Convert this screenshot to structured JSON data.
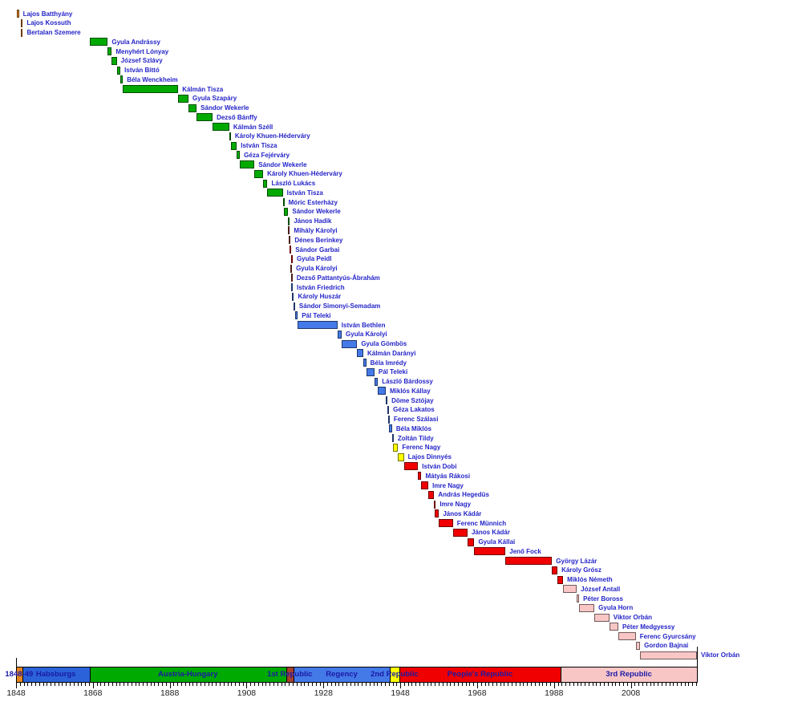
{
  "page": {
    "background": "#FFFFFF"
  },
  "text_colors": {
    "minister_label": "#2424C8",
    "period_label": "#1A1AA6",
    "axis_label": "#222222"
  },
  "chart_data": {
    "type": "timeline",
    "description_visible_text_only": true,
    "x_axis": {
      "start_year": 1848,
      "end_year": 2025.2,
      "minor_tick_interval_years": 1,
      "major_tick_interval_years": 20,
      "labeled_years": [
        1848,
        1868,
        1888,
        1908,
        1928,
        1948,
        1968,
        1988,
        2008
      ]
    },
    "era_colors": {
      "revolution": "#E8861F",
      "habsburg": "#2B62D9",
      "austria_hungary": "#00AA00",
      "first_republic": "#A8402F",
      "soviet": "#F00000",
      "regency": "#4479E8",
      "second_republic": "#FFFF00",
      "peoples_republic": "#F00000",
      "third_republic": "#F9C6C6"
    },
    "periods": [
      {
        "label": "1848-49",
        "start": 1848.0,
        "end": 1849.6,
        "era": "revolution"
      },
      {
        "label": "Habsburgs",
        "start": 1849.6,
        "end": 1867.13,
        "era": "habsburg"
      },
      {
        "label": "Austria-Hungary",
        "start": 1867.13,
        "end": 1918.3,
        "era": "austria_hungary"
      },
      {
        "label": "1st Republic",
        "start": 1918.3,
        "end": 1920.2,
        "era": "first_republic"
      },
      {
        "label": "Regency",
        "start": 1920.2,
        "end": 1945.3,
        "era": "regency"
      },
      {
        "label": "2nd Republic",
        "start": 1945.3,
        "end": 1947.7,
        "era": "second_republic"
      },
      {
        "label": "People's Republic",
        "start": 1947.7,
        "end": 1989.8,
        "era": "peoples_republic"
      },
      {
        "label": "3rd Republic",
        "start": 1989.8,
        "end": 2025.2,
        "era": "third_republic"
      }
    ],
    "ministers": [
      {
        "name": "Lajos Batthyány",
        "start": 1848.21,
        "end": 1848.75,
        "era": "revolution"
      },
      {
        "name": "Lajos Kossuth",
        "start": 1849.33,
        "end": 1849.61,
        "era": "revolution"
      },
      {
        "name": "Bertalan Szemere",
        "start": 1849.35,
        "end": 1849.61,
        "era": "revolution"
      },
      {
        "name": "Gyula Andrássy",
        "start": 1867.13,
        "end": 1871.87,
        "era": "austria_hungary"
      },
      {
        "name": "Menyhért Lónyay",
        "start": 1871.87,
        "end": 1872.92,
        "era": "austria_hungary"
      },
      {
        "name": "József Szlávy",
        "start": 1872.92,
        "end": 1874.22,
        "era": "austria_hungary"
      },
      {
        "name": "István Bittó",
        "start": 1874.22,
        "end": 1875.17,
        "era": "austria_hungary"
      },
      {
        "name": "Béla Wenckheim",
        "start": 1875.17,
        "end": 1875.8,
        "era": "austria_hungary"
      },
      {
        "name": "Kálmán Tisza",
        "start": 1875.8,
        "end": 1890.2,
        "era": "austria_hungary"
      },
      {
        "name": "Gyula Szapáry",
        "start": 1890.2,
        "end": 1892.88,
        "era": "austria_hungary"
      },
      {
        "name": "Sándor Wekerle",
        "start": 1892.88,
        "end": 1895.0,
        "era": "austria_hungary"
      },
      {
        "name": "Dezső Bánffy",
        "start": 1895.0,
        "end": 1899.15,
        "era": "austria_hungary"
      },
      {
        "name": "Kálmán Széll",
        "start": 1899.15,
        "end": 1903.5,
        "era": "austria_hungary"
      },
      {
        "name": "Károly Khuen-Héderváry",
        "start": 1903.5,
        "end": 1903.84,
        "era": "austria_hungary"
      },
      {
        "name": "István Tisza",
        "start": 1903.84,
        "end": 1905.45,
        "era": "austria_hungary"
      },
      {
        "name": "Géza Fejérváry",
        "start": 1905.45,
        "end": 1906.27,
        "era": "austria_hungary"
      },
      {
        "name": "Sándor Wekerle",
        "start": 1906.27,
        "end": 1910.05,
        "era": "austria_hungary"
      },
      {
        "name": "Károly Khuen-Héderváry",
        "start": 1910.05,
        "end": 1912.3,
        "era": "austria_hungary"
      },
      {
        "name": "László Lukács",
        "start": 1912.3,
        "end": 1913.43,
        "era": "austria_hungary"
      },
      {
        "name": "István Tisza",
        "start": 1913.43,
        "end": 1917.43,
        "era": "austria_hungary"
      },
      {
        "name": "Móric Esterházy",
        "start": 1917.43,
        "end": 1917.63,
        "era": "austria_hungary"
      },
      {
        "name": "Sándor Wekerle",
        "start": 1917.63,
        "end": 1918.83,
        "era": "austria_hungary"
      },
      {
        "name": "János Hadik",
        "start": 1918.82,
        "end": 1918.84,
        "era": "austria_hungary"
      },
      {
        "name": "Mihály Károlyi",
        "start": 1918.84,
        "end": 1919.05,
        "era": "first_republic"
      },
      {
        "name": "Dénes Berinkey",
        "start": 1919.05,
        "end": 1919.22,
        "era": "first_republic"
      },
      {
        "name": "Sándor Garbai",
        "start": 1919.22,
        "end": 1919.59,
        "era": "soviet"
      },
      {
        "name": "Gyula Peidl",
        "start": 1919.58,
        "end": 1919.61,
        "era": "soviet"
      },
      {
        "name": "Gyula Károlyi",
        "start": 1919.4,
        "end": 1919.6,
        "era": "first_republic"
      },
      {
        "name": "Dezső Pattantyús-Ábrahám",
        "start": 1919.54,
        "end": 1919.63,
        "era": "first_republic"
      },
      {
        "name": "István Friedrich",
        "start": 1919.6,
        "end": 1919.9,
        "era": "regency"
      },
      {
        "name": "Károly Huszár",
        "start": 1919.9,
        "end": 1920.2,
        "era": "regency"
      },
      {
        "name": "Sándor Simonyi-Semadam",
        "start": 1920.2,
        "end": 1920.55,
        "era": "regency"
      },
      {
        "name": "Pál Teleki",
        "start": 1920.55,
        "end": 1921.3,
        "era": "regency"
      },
      {
        "name": "István Bethlen",
        "start": 1921.3,
        "end": 1931.65,
        "era": "regency"
      },
      {
        "name": "Gyula Károlyi",
        "start": 1931.65,
        "end": 1932.75,
        "era": "regency"
      },
      {
        "name": "Gyula Gömbös",
        "start": 1932.75,
        "end": 1936.77,
        "era": "regency"
      },
      {
        "name": "Kálmán Darányi",
        "start": 1936.77,
        "end": 1938.37,
        "era": "regency"
      },
      {
        "name": "Béla Imrédy",
        "start": 1938.37,
        "end": 1939.13,
        "era": "regency"
      },
      {
        "name": "Pál Teleki",
        "start": 1939.13,
        "end": 1941.27,
        "era": "regency"
      },
      {
        "name": "László Bárdossy",
        "start": 1941.27,
        "end": 1942.18,
        "era": "regency"
      },
      {
        "name": "Miklós Kállay",
        "start": 1942.18,
        "end": 1944.22,
        "era": "regency"
      },
      {
        "name": "Döme Sztójay",
        "start": 1944.22,
        "end": 1944.66,
        "era": "regency"
      },
      {
        "name": "Géza Lakatos",
        "start": 1944.66,
        "end": 1944.8,
        "era": "regency"
      },
      {
        "name": "Ferenc Szálasi",
        "start": 1944.8,
        "end": 1945.24,
        "era": "regency"
      },
      {
        "name": "Béla Miklós",
        "start": 1944.97,
        "end": 1945.87,
        "era": "regency"
      },
      {
        "name": "Zoltán Tildy",
        "start": 1945.87,
        "end": 1946.09,
        "era": "regency"
      },
      {
        "name": "Ferenc Nagy",
        "start": 1946.09,
        "end": 1947.42,
        "era": "second_republic"
      },
      {
        "name": "Lajos Dinnyés",
        "start": 1947.42,
        "end": 1948.95,
        "era": "second_republic"
      },
      {
        "name": "István Dobi",
        "start": 1948.95,
        "end": 1952.63,
        "era": "peoples_republic"
      },
      {
        "name": "Mátyás Rákosi",
        "start": 1952.63,
        "end": 1953.5,
        "era": "peoples_republic"
      },
      {
        "name": "Imre Nagy",
        "start": 1953.5,
        "end": 1955.3,
        "era": "peoples_republic"
      },
      {
        "name": "András Hegedüs",
        "start": 1955.3,
        "end": 1956.82,
        "era": "peoples_republic"
      },
      {
        "name": "Imre Nagy",
        "start": 1956.82,
        "end": 1956.9,
        "era": "peoples_republic"
      },
      {
        "name": "János Kádár",
        "start": 1956.9,
        "end": 1958.07,
        "era": "peoples_republic"
      },
      {
        "name": "Ferenc Münnich",
        "start": 1958.07,
        "end": 1961.7,
        "era": "peoples_republic"
      },
      {
        "name": "János Kádár",
        "start": 1961.7,
        "end": 1965.5,
        "era": "peoples_republic"
      },
      {
        "name": "Gyula Kállai",
        "start": 1965.5,
        "end": 1967.27,
        "era": "peoples_republic"
      },
      {
        "name": "Jenő Fock",
        "start": 1967.27,
        "end": 1975.37,
        "era": "peoples_republic"
      },
      {
        "name": "György Lázár",
        "start": 1975.37,
        "end": 1987.48,
        "era": "peoples_republic"
      },
      {
        "name": "Károly Grósz",
        "start": 1987.48,
        "end": 1988.9,
        "era": "peoples_republic"
      },
      {
        "name": "Miklós Németh",
        "start": 1988.9,
        "end": 1990.38,
        "era": "peoples_republic"
      },
      {
        "name": "József Antall",
        "start": 1990.38,
        "end": 1993.93,
        "era": "third_republic"
      },
      {
        "name": "Péter Boross",
        "start": 1993.93,
        "end": 1994.54,
        "era": "third_republic"
      },
      {
        "name": "Gyula Horn",
        "start": 1994.54,
        "end": 1998.52,
        "era": "third_republic"
      },
      {
        "name": "Viktor Orbán",
        "start": 1998.52,
        "end": 2002.4,
        "era": "third_republic"
      },
      {
        "name": "Péter Medgyessy",
        "start": 2002.4,
        "end": 2004.74,
        "era": "third_republic"
      },
      {
        "name": "Ferenc Gyurcsány",
        "start": 2004.74,
        "end": 2009.29,
        "era": "third_republic"
      },
      {
        "name": "Gordon Bajnai",
        "start": 2009.29,
        "end": 2010.41,
        "era": "third_republic"
      },
      {
        "name": "Viktor Orbán",
        "start": 2010.41,
        "end": 2025.2,
        "era": "third_republic"
      }
    ]
  }
}
